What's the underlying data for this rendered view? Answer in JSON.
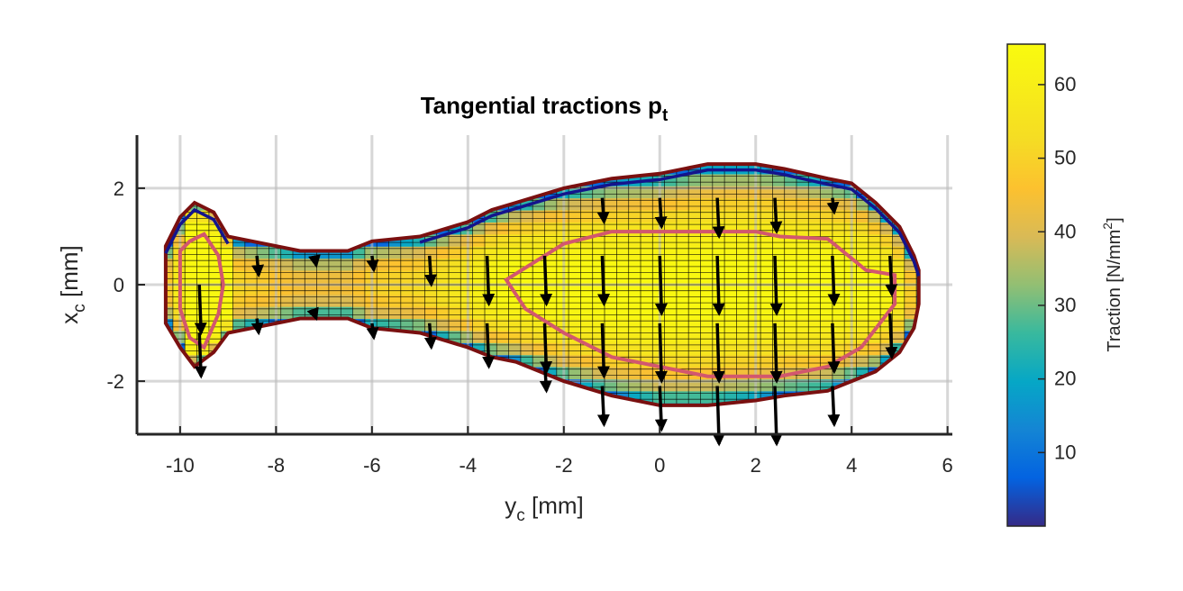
{
  "chart_data": {
    "type": "heatmap",
    "title": "Tangential tractions p",
    "title_subscript": "t",
    "xlabel": "y",
    "xlabel_subscript": "c",
    "xlabel_unit": " [mm]",
    "ylabel": "x",
    "ylabel_subscript": "c",
    "ylabel_unit": " [mm]",
    "xlim": [
      -10.9,
      6.1
    ],
    "ylim": [
      -3.1,
      3.1
    ],
    "xticks": [
      -10,
      -8,
      -6,
      -4,
      -2,
      0,
      2,
      4,
      6
    ],
    "yticks": [
      -2,
      0,
      2
    ],
    "grid": true,
    "colormap": "parula",
    "colorbar": {
      "label": "Traction [N/mm",
      "label_superscript": "2",
      "label_close": "]",
      "ticks": [
        10,
        20,
        30,
        40,
        50,
        60
      ],
      "range": [
        0,
        65.5
      ]
    },
    "contact_outline_color": "#7a1010",
    "stick_zone_color": "#d2576e",
    "slip_boundary_color": "#14148c",
    "arrow_color": "#000000",
    "contact_profile": {
      "y": [
        -10.3,
        -10.0,
        -9.7,
        -9.3,
        -9.0,
        -8.5,
        -7.5,
        -6.5,
        -6.0,
        -5.0,
        -4.0,
        -3.5,
        -3.0,
        -2.0,
        -1.0,
        0.0,
        1.0,
        2.0,
        2.6,
        3.5,
        4.0,
        4.5,
        5.0,
        5.3,
        5.4
      ],
      "x_upper": [
        0.8,
        1.4,
        1.7,
        1.5,
        1.0,
        0.9,
        0.7,
        0.7,
        0.9,
        1.0,
        1.3,
        1.55,
        1.7,
        2.0,
        2.2,
        2.3,
        2.5,
        2.5,
        2.4,
        2.2,
        2.1,
        1.7,
        1.2,
        0.6,
        0.3
      ],
      "x_lower": [
        -0.8,
        -1.3,
        -1.7,
        -1.4,
        -1.0,
        -0.9,
        -0.7,
        -0.7,
        -0.9,
        -1.0,
        -1.3,
        -1.5,
        -1.6,
        -2.0,
        -2.3,
        -2.5,
        -2.5,
        -2.4,
        -2.3,
        -2.2,
        -2.0,
        -1.8,
        -1.4,
        -0.9,
        -0.4
      ]
    },
    "stick_zone_profile": {
      "y": [
        -10.0,
        -9.8,
        -9.5,
        -9.2,
        -9.1,
        -9.2,
        -9.5,
        -9.8,
        -10.0
      ],
      "x": [
        0.7,
        0.9,
        1.05,
        0.6,
        0.0,
        -0.6,
        -1.3,
        -1.1,
        -0.5
      ]
    },
    "stick_zone_profile_2": {
      "y": [
        -3.2,
        -2.0,
        -1.0,
        0.0,
        1.0,
        2.0,
        2.5,
        3.5,
        4.3,
        4.9,
        4.9,
        4.2,
        3.5,
        2.5,
        1.0,
        0.0,
        -1.0,
        -2.0,
        -2.8
      ],
      "x": [
        0.1,
        0.85,
        1.1,
        1.1,
        1.1,
        1.1,
        1.0,
        0.95,
        0.3,
        0.2,
        -0.4,
        -1.3,
        -1.7,
        -1.9,
        -1.9,
        -1.7,
        -1.5,
        -1.0,
        -0.5
      ]
    },
    "arrows": [
      {
        "y": -9.6,
        "x": 0.0,
        "u": -1.0
      },
      {
        "y": -9.6,
        "x": -1.0,
        "u": -0.9
      },
      {
        "y": -8.4,
        "x": 0.6,
        "u": -0.4
      },
      {
        "y": -8.4,
        "x": -0.7,
        "u": -0.3
      },
      {
        "y": -7.2,
        "x": 0.6,
        "u": -0.2
      },
      {
        "y": -7.2,
        "x": -0.6,
        "u": -0.1
      },
      {
        "y": -6.0,
        "x": 0.6,
        "u": -0.3
      },
      {
        "y": -6.0,
        "x": -0.8,
        "u": -0.3
      },
      {
        "y": -4.8,
        "x": 0.6,
        "u": -0.6
      },
      {
        "y": -4.8,
        "x": -0.8,
        "u": -0.5
      },
      {
        "y": -3.6,
        "x": 0.6,
        "u": -1.0
      },
      {
        "y": -3.6,
        "x": -0.8,
        "u": -0.9
      },
      {
        "y": -2.4,
        "x": 0.6,
        "u": -1.0
      },
      {
        "y": -2.4,
        "x": -0.8,
        "u": -1.0
      },
      {
        "y": -2.4,
        "x": -1.6,
        "u": -0.6
      },
      {
        "y": -1.2,
        "x": 1.8,
        "u": -0.5
      },
      {
        "y": -1.2,
        "x": 0.6,
        "u": -1.0
      },
      {
        "y": -1.2,
        "x": -0.8,
        "u": -1.1
      },
      {
        "y": -1.2,
        "x": -2.1,
        "u": -0.8
      },
      {
        "y": 0.0,
        "x": 1.8,
        "u": -0.6
      },
      {
        "y": 0.0,
        "x": 0.6,
        "u": -1.2
      },
      {
        "y": 0.0,
        "x": -0.8,
        "u": -1.2
      },
      {
        "y": 0.0,
        "x": -2.1,
        "u": -0.9
      },
      {
        "y": 1.2,
        "x": 1.8,
        "u": -0.8
      },
      {
        "y": 1.2,
        "x": 0.6,
        "u": -1.2
      },
      {
        "y": 1.2,
        "x": -0.8,
        "u": -1.2
      },
      {
        "y": 1.2,
        "x": -2.1,
        "u": -1.2
      },
      {
        "y": 2.4,
        "x": 1.8,
        "u": -0.7
      },
      {
        "y": 2.4,
        "x": 0.6,
        "u": -1.2
      },
      {
        "y": 2.4,
        "x": -0.8,
        "u": -1.2
      },
      {
        "y": 2.4,
        "x": -2.1,
        "u": -1.2
      },
      {
        "y": 3.6,
        "x": 1.8,
        "u": -0.3
      },
      {
        "y": 3.6,
        "x": 0.6,
        "u": -1.0
      },
      {
        "y": 3.6,
        "x": -0.8,
        "u": -1.0
      },
      {
        "y": 3.6,
        "x": -2.1,
        "u": -0.8
      },
      {
        "y": 4.8,
        "x": 0.6,
        "u": -0.8
      },
      {
        "y": 4.8,
        "x": -0.6,
        "u": -0.9
      }
    ]
  }
}
